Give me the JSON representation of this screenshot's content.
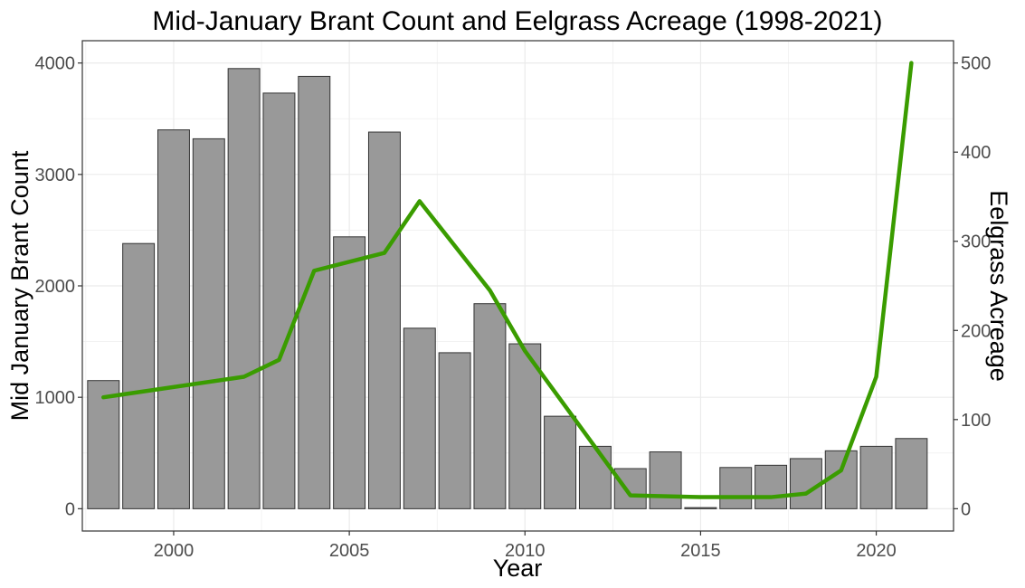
{
  "chart_data": {
    "type": "bar",
    "title": "Mid-January Brant Count and Eelgrass Acreage (1998-2021)",
    "xlabel": "Year",
    "ylabel": "Mid January Brant Count",
    "y2label": "Eelgrass Acreage",
    "x_ticks": [
      2000,
      2005,
      2010,
      2015,
      2020
    ],
    "y_ticks": [
      0,
      1000,
      2000,
      3000,
      4000
    ],
    "y2_ticks": [
      0,
      100,
      200,
      300,
      400,
      500
    ],
    "xlim": [
      1997.4,
      2022.2
    ],
    "ylim": [
      -200,
      4200
    ],
    "y2lim": [
      -25,
      525
    ],
    "grid": true,
    "colors": {
      "bars": "#999999",
      "bar_edge": "#333333",
      "line": "#3a9c00",
      "grid": "#ebebeb",
      "border": "#333333"
    },
    "series": [
      {
        "name": "Mid January Brant Count",
        "type": "bar",
        "x": [
          1998,
          1999,
          2000,
          2001,
          2002,
          2003,
          2004,
          2005,
          2006,
          2007,
          2008,
          2009,
          2010,
          2011,
          2012,
          2013,
          2014,
          2015,
          2016,
          2017,
          2018,
          2019,
          2020,
          2021
        ],
        "values": [
          1150,
          2380,
          3400,
          3320,
          3950,
          3730,
          3880,
          2440,
          3380,
          1620,
          1400,
          1840,
          1480,
          830,
          560,
          360,
          510,
          10,
          370,
          390,
          450,
          520,
          560,
          630
        ]
      },
      {
        "name": "Eelgrass Acreage",
        "type": "line",
        "axis": "right",
        "x": [
          1998,
          2002,
          2003,
          2004,
          2006,
          2007,
          2009,
          2010,
          2013,
          2015,
          2017,
          2018,
          2019,
          2020,
          2021
        ],
        "values": [
          125,
          148,
          167,
          267,
          287,
          345,
          245,
          177,
          15,
          13,
          13,
          17,
          43,
          148,
          500
        ]
      }
    ]
  }
}
